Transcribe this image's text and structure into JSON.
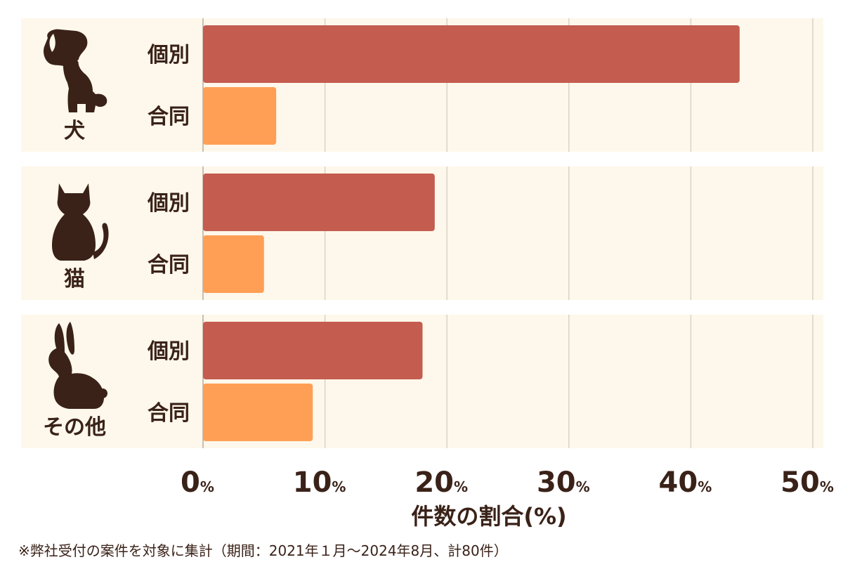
{
  "chart_data": {
    "type": "bar",
    "orientation": "horizontal",
    "categories": [
      "犬",
      "猫",
      "その他"
    ],
    "category_icons": [
      "dog-icon",
      "cat-icon",
      "rabbit-icon"
    ],
    "sub_categories": [
      "個別",
      "合同"
    ],
    "series": [
      {
        "name": "個別",
        "color": "#c45c4f",
        "values": [
          44,
          19,
          18
        ]
      },
      {
        "name": "合同",
        "color": "#ff9f55",
        "values": [
          6,
          5,
          9
        ]
      }
    ],
    "xlim": [
      0,
      50
    ],
    "x_ticks": [
      0,
      10,
      20,
      30,
      40,
      50
    ],
    "tick_suffix": "%",
    "xlabel": "件数の割合(%)",
    "grid": true,
    "panel_color": "#fdf8eb",
    "label_color": "#3a2218"
  },
  "footnote": "※弊社受付の案件を対象に集計（期間：2021年１月～2024年8月、計80件）"
}
